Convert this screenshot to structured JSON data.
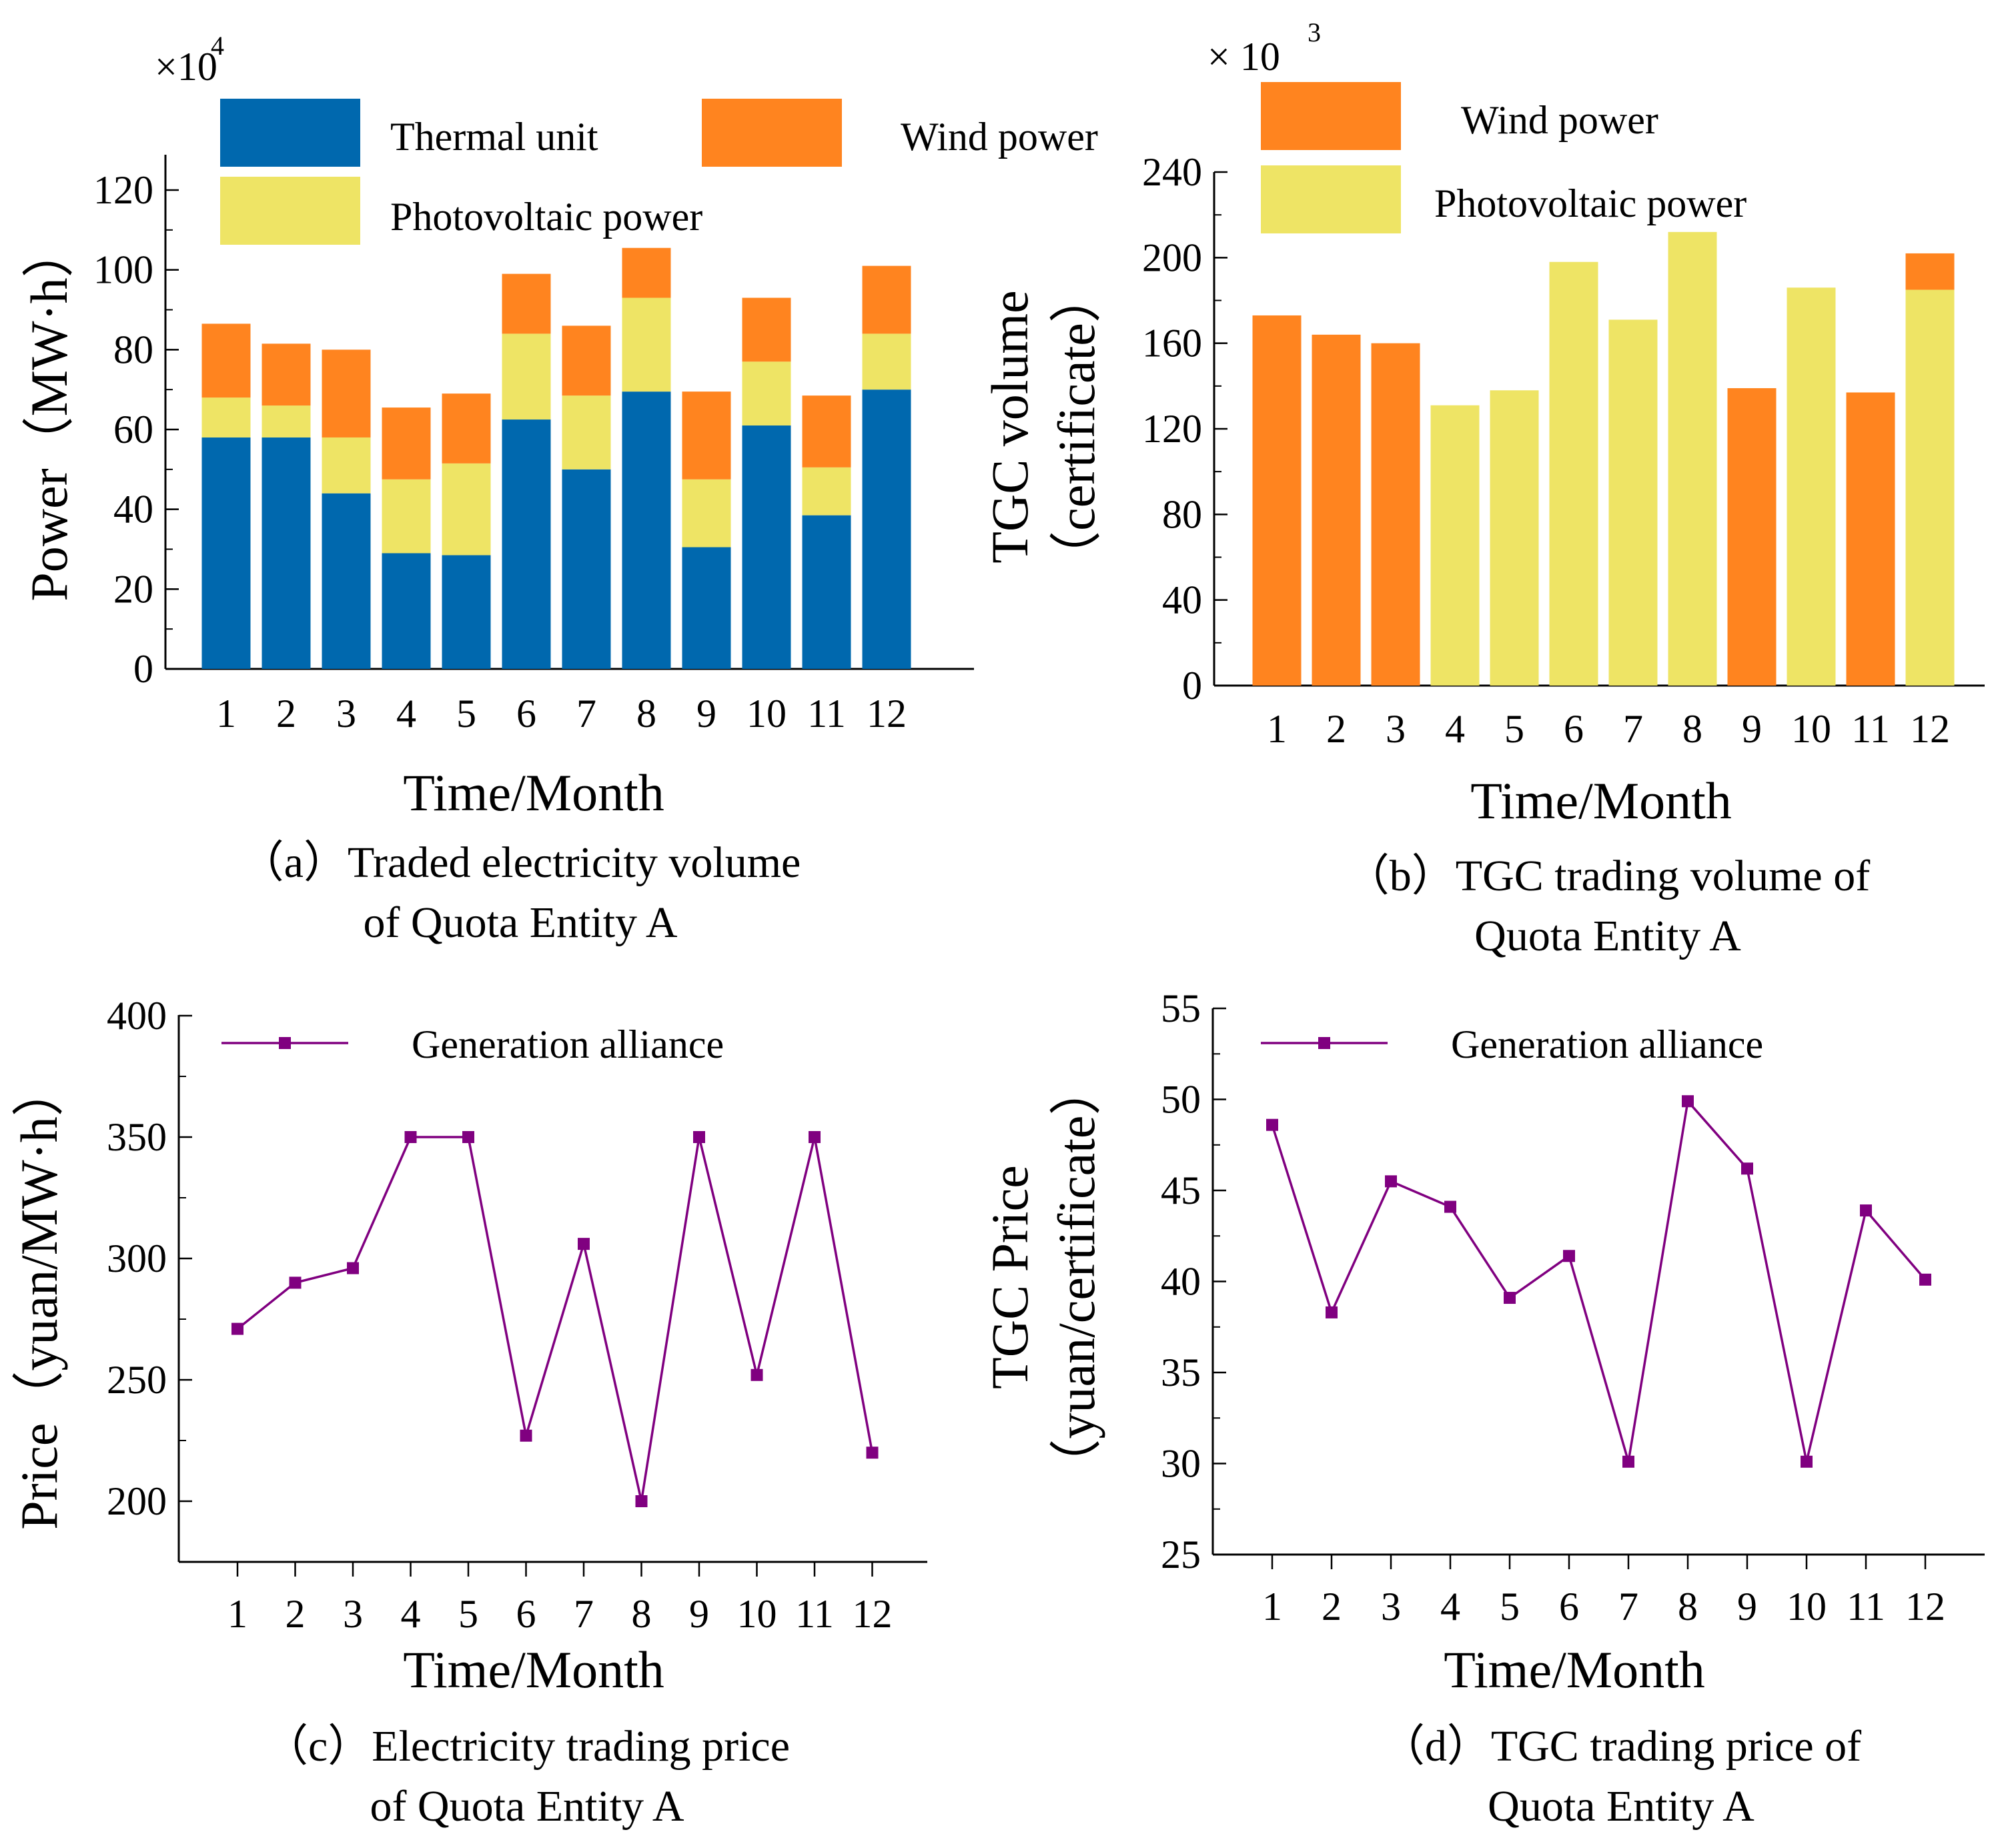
{
  "colors": {
    "thermal": "#0068AE",
    "wind": "#FF841F",
    "pv": "#EEE465",
    "line": "#800080"
  },
  "chart_data": [
    {
      "id": "a",
      "type": "bar",
      "stacked": true,
      "categories": [
        "1",
        "2",
        "3",
        "4",
        "5",
        "6",
        "7",
        "8",
        "9",
        "10",
        "11",
        "12"
      ],
      "series": [
        {
          "name": "Thermal unit",
          "color_key": "thermal",
          "values": [
            58,
            58,
            44,
            29,
            28.5,
            62.5,
            50,
            69.5,
            30.5,
            61,
            38.5,
            70
          ]
        },
        {
          "name": "Photovoltaic power",
          "color_key": "pv",
          "values": [
            10,
            8,
            14,
            18.5,
            23,
            21.5,
            18.5,
            23.5,
            17,
            16,
            12,
            14
          ]
        },
        {
          "name": "Wind power",
          "color_key": "wind",
          "values": [
            18.5,
            15.5,
            22,
            18,
            17.5,
            15,
            17.5,
            12.5,
            22,
            16,
            18,
            17
          ]
        }
      ],
      "legend": [
        "Thermal unit",
        "Wind power",
        "Photovoltaic power"
      ],
      "xlabel": "Time/Month",
      "ylabel": "Power（MW·h）",
      "multiplier": {
        "base": "×10",
        "exp": "4"
      },
      "ylim": [
        0,
        130
      ],
      "yticks": [
        "0",
        "20",
        "40",
        "60",
        "80",
        "100",
        "120"
      ],
      "caption": [
        "（a）Traded electricity volume",
        "of Quota Entity A"
      ]
    },
    {
      "id": "b",
      "type": "bar",
      "categories": [
        "1",
        "2",
        "3",
        "4",
        "5",
        "6",
        "7",
        "8",
        "9",
        "10",
        "11",
        "12"
      ],
      "series": [
        {
          "name": "Wind power",
          "color_key": "wind",
          "values": [
            173,
            164,
            160,
            0,
            0,
            0,
            0,
            0,
            139,
            0,
            137,
            17
          ]
        },
        {
          "name": "Photovoltaic power",
          "color_key": "pv",
          "values": [
            0,
            0,
            0,
            131,
            138,
            198,
            171,
            212,
            0,
            186,
            0,
            185
          ]
        }
      ],
      "stack_order": [
        "Photovoltaic power",
        "Wind power"
      ],
      "legend": [
        "Wind power",
        "Photovoltaic power"
      ],
      "xlabel": "Time/Month",
      "ylabel_lines": [
        "TGC volume",
        "（certificate）"
      ],
      "multiplier": {
        "base": "× 10",
        "exp": "3"
      },
      "ylim": [
        0,
        240
      ],
      "yticks": [
        "0",
        "40",
        "80",
        "120",
        "160",
        "200",
        "240"
      ],
      "caption": [
        "（b）TGC trading volume of",
        "Quota Entity A"
      ]
    },
    {
      "id": "c",
      "type": "line",
      "x": [
        "1",
        "2",
        "3",
        "4",
        "5",
        "6",
        "7",
        "8",
        "9",
        "10",
        "11",
        "12"
      ],
      "series": [
        {
          "name": "Generation alliance",
          "color_key": "line",
          "values": [
            271,
            290,
            296,
            350,
            350,
            227,
            306,
            200,
            350,
            252,
            350,
            220
          ]
        }
      ],
      "xlabel": "Time/Month",
      "ylabel": "Price（yuan/MW·h）",
      "ylim": [
        175,
        400
      ],
      "yticks": [
        "200",
        "250",
        "300",
        "350",
        "400"
      ],
      "caption": [
        "（c）Electricity trading price",
        "of Quota Entity A"
      ]
    },
    {
      "id": "d",
      "type": "line",
      "x": [
        "1",
        "2",
        "3",
        "4",
        "5",
        "6",
        "7",
        "8",
        "9",
        "10",
        "11",
        "12"
      ],
      "series": [
        {
          "name": "Generation alliance",
          "color_key": "line",
          "values": [
            48.6,
            38.3,
            45.5,
            44.1,
            39.1,
            41.4,
            30.1,
            49.9,
            46.2,
            30.1,
            43.9,
            40.1
          ]
        }
      ],
      "xlabel": "Time/Month",
      "ylabel_lines": [
        "TGC Price",
        "（yuan/certificate）"
      ],
      "ylim": [
        25,
        55
      ],
      "yticks": [
        "25",
        "30",
        "35",
        "40",
        "45",
        "50",
        "55"
      ],
      "caption": [
        "（d）TGC trading price of",
        "Quota Entity A"
      ]
    }
  ]
}
